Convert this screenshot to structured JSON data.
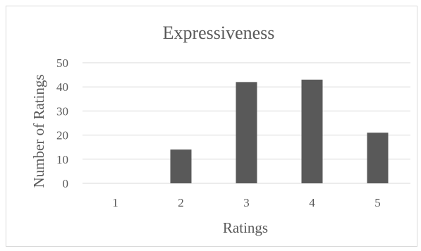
{
  "chart_data": {
    "type": "bar",
    "title": "Expressiveness",
    "xlabel": "Ratings",
    "ylabel": "Number of Ratings",
    "categories": [
      "1",
      "2",
      "3",
      "4",
      "5"
    ],
    "values": [
      0,
      14,
      42,
      43,
      21
    ],
    "ylim": [
      0,
      50
    ],
    "yticks": [
      0,
      10,
      20,
      30,
      40,
      50
    ],
    "grid": true,
    "legend": "none",
    "bar_color": "#595959",
    "grid_color": "#d9d9d9"
  }
}
